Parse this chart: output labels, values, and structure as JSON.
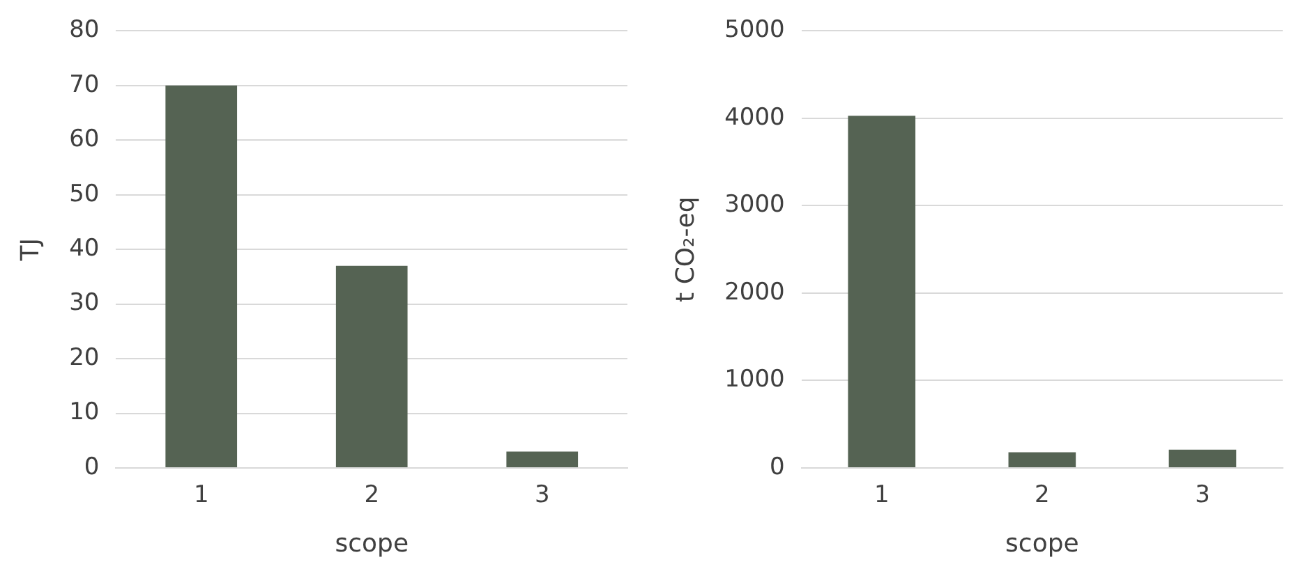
{
  "chart_data": [
    {
      "type": "bar",
      "xlabel": "scope",
      "ylabel": "TJ",
      "categories": [
        "1",
        "2",
        "3"
      ],
      "values": [
        70,
        37,
        3
      ],
      "color": "#556353",
      "ylim": [
        0,
        80
      ],
      "yticks": [
        0,
        10,
        20,
        30,
        40,
        50,
        60,
        70,
        80
      ],
      "grid": "y"
    },
    {
      "type": "bar",
      "xlabel": "scope",
      "ylabel": "t CO₂-eq",
      "categories": [
        "1",
        "2",
        "3"
      ],
      "values": [
        4030,
        180,
        210
      ],
      "color": "#556353",
      "ylim": [
        0,
        5000
      ],
      "yticks": [
        0,
        1000,
        2000,
        3000,
        4000,
        5000
      ],
      "grid": "y"
    }
  ]
}
